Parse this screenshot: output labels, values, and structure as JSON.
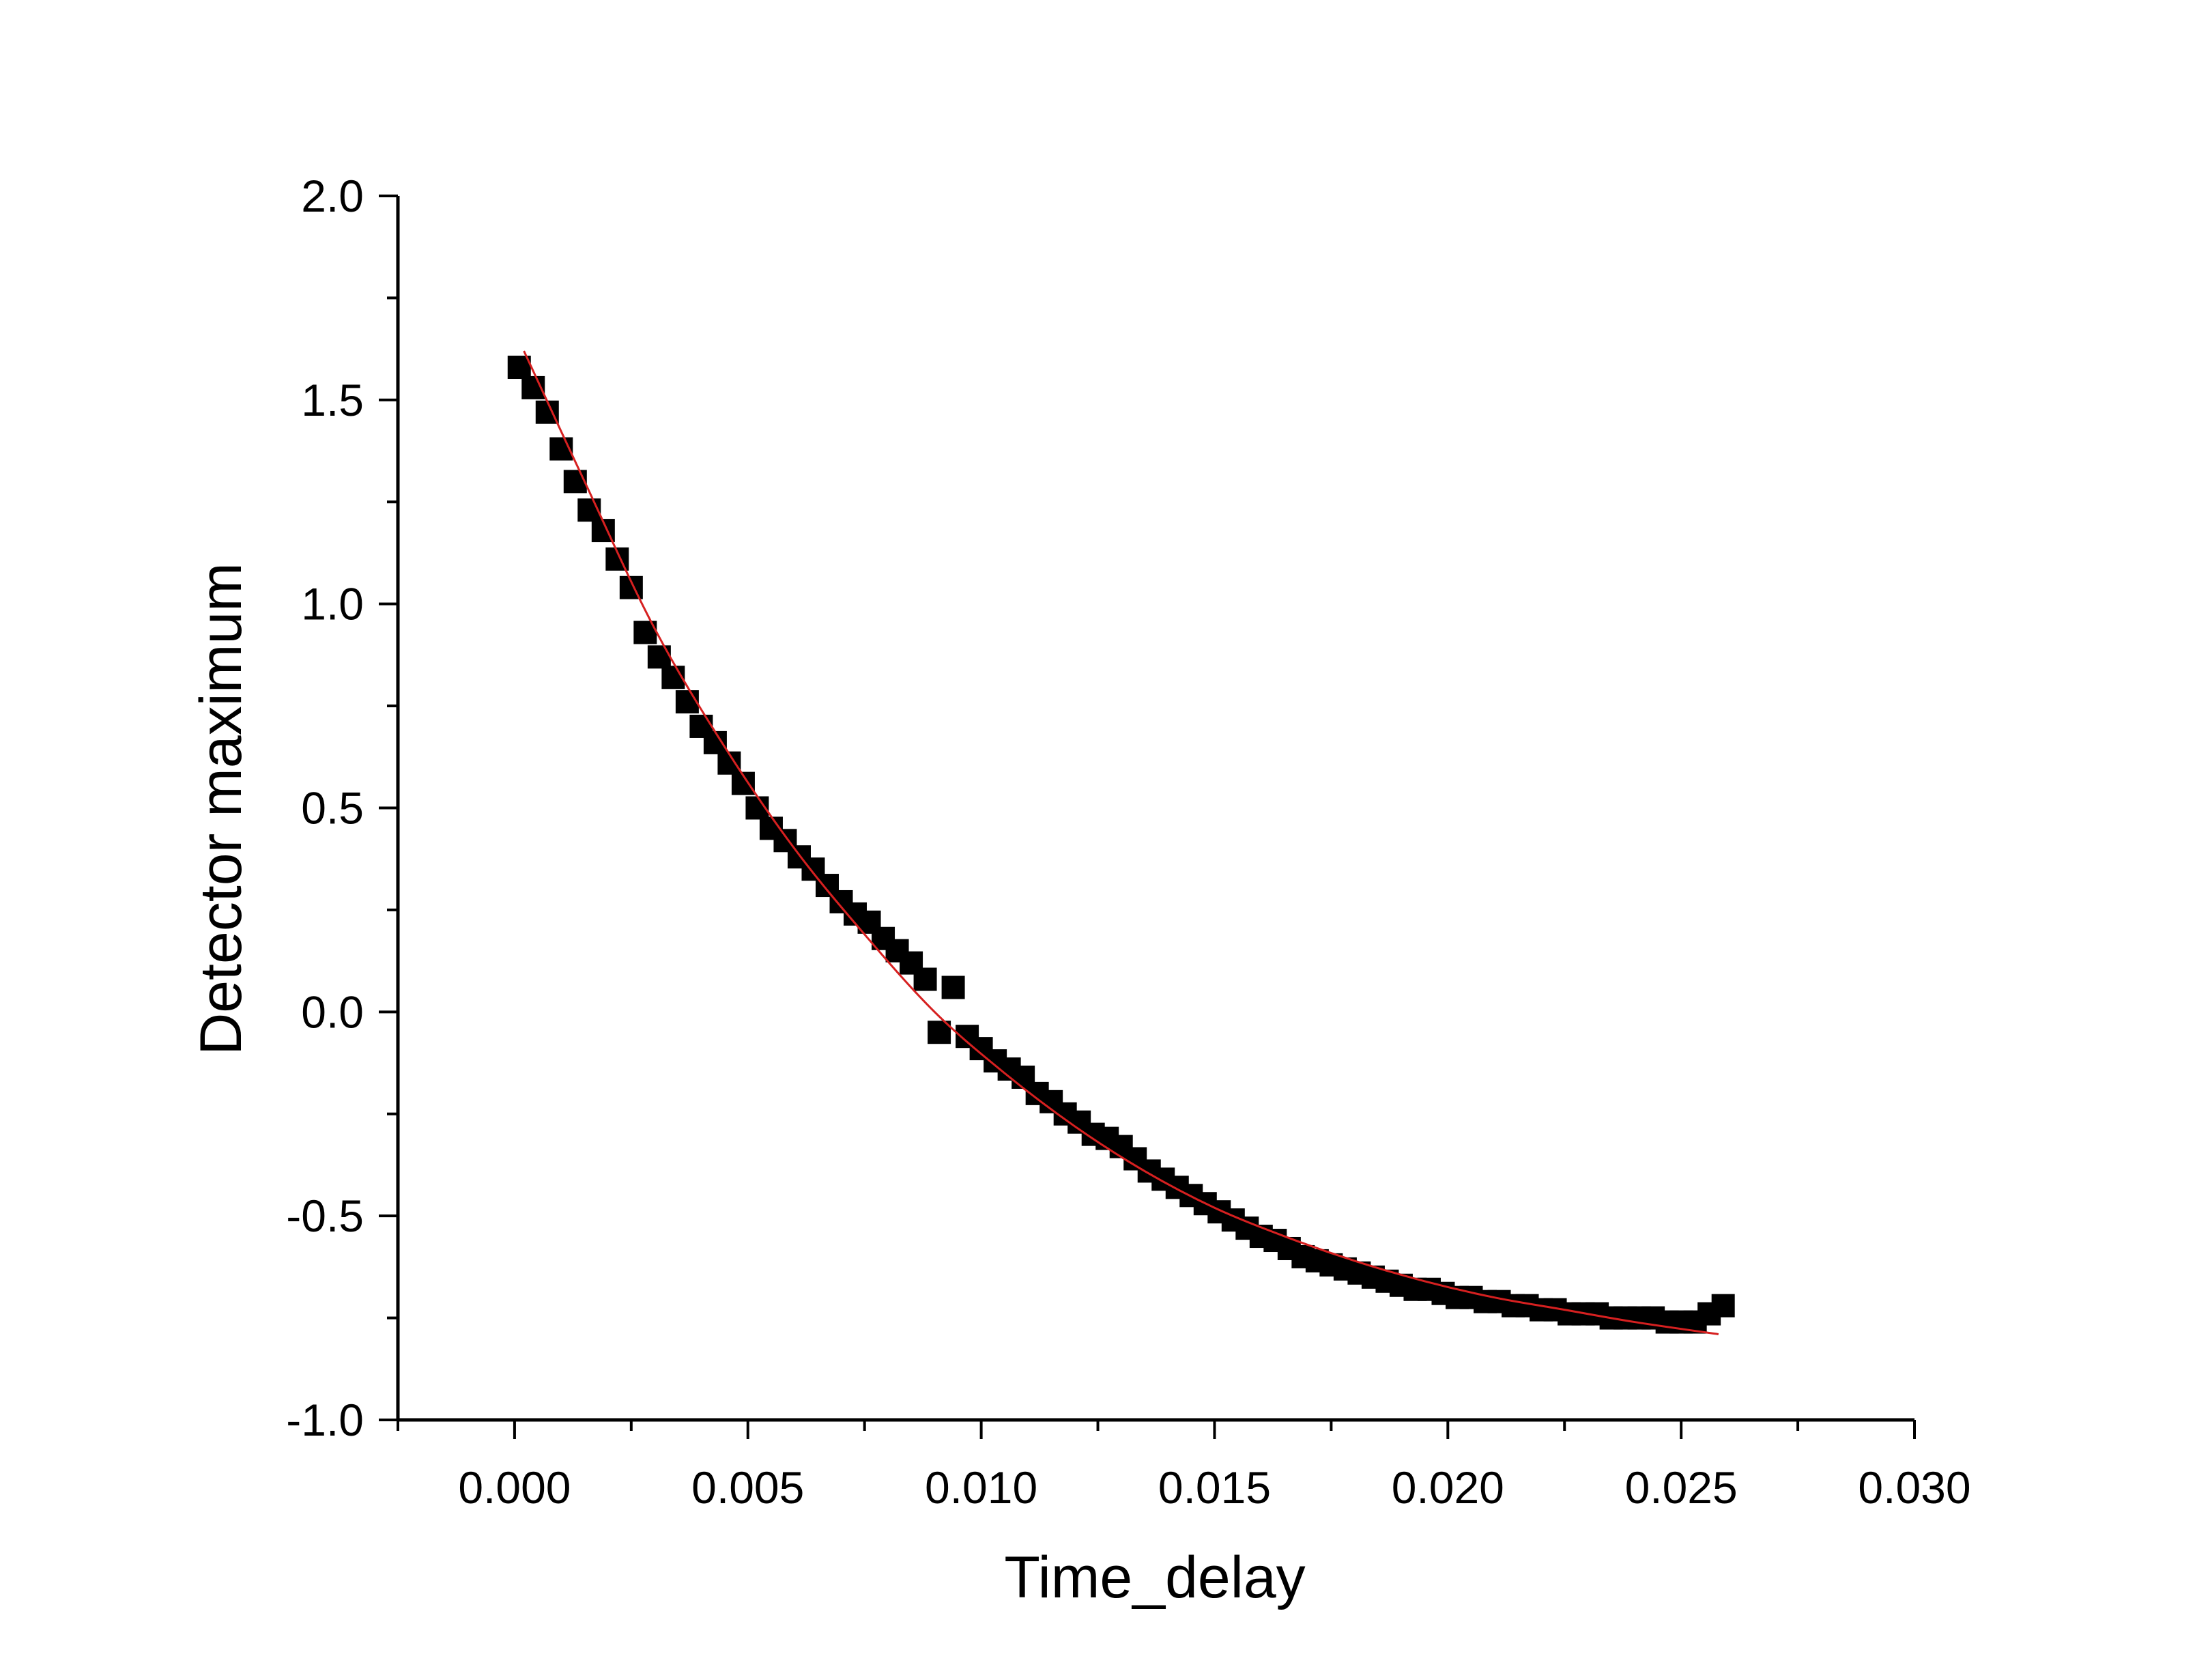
{
  "chart_data": {
    "type": "scatter",
    "title": "",
    "xlabel": "Time_delay",
    "ylabel": "Detector maximum",
    "xlim": [
      -0.0025,
      0.03
    ],
    "ylim": [
      -1.0,
      2.0
    ],
    "x_ticks": [
      0.0,
      0.005,
      0.01,
      0.015,
      0.02,
      0.025,
      0.03
    ],
    "x_tick_labels": [
      "0.000",
      "0.005",
      "0.010",
      "0.015",
      "0.020",
      "0.025",
      "0.030"
    ],
    "y_ticks": [
      -1.0,
      -0.5,
      0.0,
      0.5,
      1.0,
      1.5,
      2.0
    ],
    "y_tick_labels": [
      "-1.0",
      "-0.5",
      "0.0",
      "0.5",
      "1.0",
      "1.5",
      "2.0"
    ],
    "grid": false,
    "legend": "none",
    "colors": {
      "points": "#000000",
      "fit": "#d62020",
      "axes": "#000000"
    },
    "series": [
      {
        "kind": "scatter",
        "marker": "square",
        "x": [
          0.0001,
          0.0004,
          0.0007,
          0.001,
          0.0013,
          0.0016,
          0.0019,
          0.0022,
          0.0025,
          0.0028,
          0.0031,
          0.0034,
          0.0037,
          0.004,
          0.0043,
          0.0046,
          0.0049,
          0.0052,
          0.0055,
          0.0058,
          0.0061,
          0.0064,
          0.0067,
          0.007,
          0.0073,
          0.0076,
          0.0079,
          0.0082,
          0.0085,
          0.0088,
          0.0091,
          0.0094,
          0.0097,
          0.01,
          0.0103,
          0.0106,
          0.0109,
          0.0112,
          0.0115,
          0.0118,
          0.0121,
          0.0124,
          0.0127,
          0.013,
          0.0133,
          0.0136,
          0.0139,
          0.0142,
          0.0145,
          0.0148,
          0.0151,
          0.0154,
          0.0157,
          0.016,
          0.0163,
          0.0166,
          0.0169,
          0.0172,
          0.0175,
          0.0178,
          0.0181,
          0.0184,
          0.0187,
          0.019,
          0.0193,
          0.0196,
          0.0199,
          0.0202,
          0.0205,
          0.0208,
          0.0211,
          0.0214,
          0.0217,
          0.022,
          0.0223,
          0.0226,
          0.0229,
          0.0232,
          0.0235,
          0.0238,
          0.0241,
          0.0244,
          0.0247,
          0.025,
          0.0253,
          0.0256,
          0.0259
        ],
        "y": [
          1.58,
          1.53,
          1.47,
          1.38,
          1.3,
          1.23,
          1.18,
          1.11,
          1.04,
          0.93,
          0.87,
          0.82,
          0.76,
          0.7,
          0.66,
          0.61,
          0.56,
          0.5,
          0.45,
          0.42,
          0.38,
          0.35,
          0.31,
          0.27,
          0.24,
          0.22,
          0.18,
          0.15,
          0.12,
          0.08,
          -0.05,
          0.06,
          -0.06,
          -0.09,
          -0.12,
          -0.14,
          -0.16,
          -0.2,
          -0.22,
          -0.25,
          -0.27,
          -0.3,
          -0.31,
          -0.33,
          -0.36,
          -0.39,
          -0.41,
          -0.43,
          -0.45,
          -0.47,
          -0.49,
          -0.51,
          -0.53,
          -0.55,
          -0.56,
          -0.58,
          -0.6,
          -0.61,
          -0.62,
          -0.63,
          -0.64,
          -0.65,
          -0.66,
          -0.67,
          -0.68,
          -0.68,
          -0.69,
          -0.7,
          -0.7,
          -0.71,
          -0.71,
          -0.72,
          -0.72,
          -0.73,
          -0.73,
          -0.74,
          -0.74,
          -0.74,
          -0.75,
          -0.75,
          -0.75,
          -0.75,
          -0.76,
          -0.76,
          -0.76,
          -0.74,
          -0.72
        ]
      },
      {
        "kind": "line",
        "x": [
          0.0002,
          0.0015,
          0.003,
          0.0045,
          0.006,
          0.0075,
          0.009,
          0.0105,
          0.012,
          0.0135,
          0.015,
          0.0165,
          0.018,
          0.0195,
          0.021,
          0.0225,
          0.024,
          0.0258
        ],
        "y": [
          1.62,
          1.3,
          0.94,
          0.65,
          0.4,
          0.19,
          0.0,
          -0.15,
          -0.28,
          -0.39,
          -0.48,
          -0.55,
          -0.61,
          -0.66,
          -0.7,
          -0.73,
          -0.76,
          -0.79
        ]
      }
    ]
  }
}
